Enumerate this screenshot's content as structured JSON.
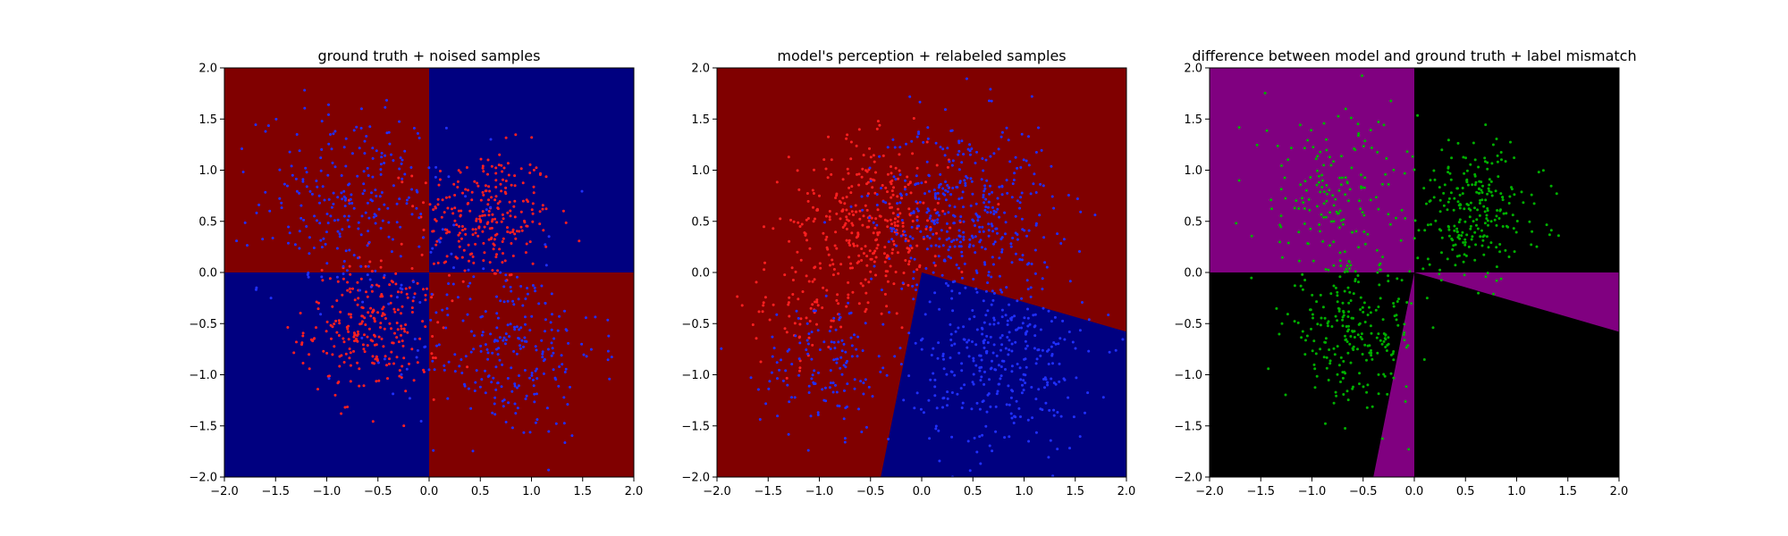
{
  "colors": {
    "red_region": "#800000",
    "blue_region": "#000080",
    "purple_region": "#800080",
    "black_region": "#000000",
    "red_point": "#ff2020",
    "blue_point": "#2030ff",
    "green_point": "#00b000"
  },
  "chart_data": [
    {
      "type": "scatter",
      "title": "ground truth + noised samples",
      "xlim": [
        -2.0,
        2.0
      ],
      "ylim": [
        -2.0,
        2.0
      ],
      "xticks": [
        "−2.0",
        "−1.5",
        "−1.0",
        "−0.5",
        "0.0",
        "0.5",
        "1.0",
        "1.5",
        "2.0"
      ],
      "yticks": [
        "−2.0",
        "−1.5",
        "−1.0",
        "−0.5",
        "0.0",
        "0.5",
        "1.0",
        "1.5",
        "2.0"
      ],
      "grid": false,
      "background": "quadrant classes: x·y<0 red, x·y>0 blue",
      "regions": [
        {
          "polygon": [
            [
              -2,
              0
            ],
            [
              0,
              0
            ],
            [
              0,
              2
            ],
            [
              -2,
              2
            ]
          ],
          "color": "red_region"
        },
        {
          "polygon": [
            [
              0,
              0
            ],
            [
              2,
              0
            ],
            [
              2,
              2
            ],
            [
              0,
              2
            ]
          ],
          "color": "blue_region"
        },
        {
          "polygon": [
            [
              -2,
              -2
            ],
            [
              0,
              -2
            ],
            [
              0,
              0
            ],
            [
              -2,
              0
            ]
          ],
          "color": "blue_region"
        },
        {
          "polygon": [
            [
              0,
              -2
            ],
            [
              2,
              -2
            ],
            [
              2,
              0
            ],
            [
              0,
              0
            ]
          ],
          "color": "red_region"
        }
      ],
      "point_series": [
        {
          "color": "red_point",
          "cluster": "top-right",
          "center": [
            0.55,
            0.55
          ],
          "spread": 0.55,
          "count": 260
        },
        {
          "color": "red_point",
          "cluster": "bottom-left",
          "center": [
            -0.55,
            -0.55
          ],
          "spread": 0.55,
          "count": 260
        },
        {
          "color": "blue_point",
          "cluster": "top-left",
          "center": [
            -0.75,
            0.7
          ],
          "spread": 0.75,
          "count": 260
        },
        {
          "color": "blue_point",
          "cluster": "bottom-right",
          "center": [
            0.75,
            -0.75
          ],
          "spread": 0.75,
          "count": 260
        }
      ]
    },
    {
      "type": "scatter",
      "title": "model's perception + relabeled samples",
      "xlim": [
        -2.0,
        2.0
      ],
      "ylim": [
        -2.0,
        2.0
      ],
      "xticks": [
        "−2.0",
        "−1.5",
        "−1.0",
        "−0.5",
        "0.0",
        "0.5",
        "1.0",
        "1.5",
        "2.0"
      ],
      "yticks": [
        "−2.0",
        "−1.5",
        "−1.0",
        "−0.5",
        "0.0",
        "0.5",
        "1.0",
        "1.5",
        "2.0"
      ],
      "grid": false,
      "regions": [
        {
          "polygon": [
            [
              -2,
              -2
            ],
            [
              2,
              -2
            ],
            [
              2,
              2
            ],
            [
              -2,
              2
            ]
          ],
          "color": "red_region"
        },
        {
          "polygon": [
            [
              0,
              0
            ],
            [
              2,
              -0.58
            ],
            [
              2,
              -2
            ],
            [
              -0.4,
              -2
            ]
          ],
          "color": "blue_region"
        }
      ],
      "point_series": [
        {
          "color": "red_point",
          "cluster": "top-left",
          "center": [
            -0.5,
            0.5
          ],
          "spread": 0.65,
          "count": 340
        },
        {
          "color": "red_point",
          "cluster": "left",
          "center": [
            -1.2,
            -0.4
          ],
          "spread": 0.45,
          "count": 60
        },
        {
          "color": "blue_point",
          "cluster": "upper",
          "center": [
            0.4,
            0.6
          ],
          "spread": 0.75,
          "count": 420
        },
        {
          "color": "blue_point",
          "cluster": "bottom-right",
          "center": [
            0.8,
            -0.9
          ],
          "spread": 0.7,
          "count": 320
        },
        {
          "color": "blue_point",
          "cluster": "bottom-left",
          "center": [
            -0.9,
            -0.9
          ],
          "spread": 0.55,
          "count": 140
        }
      ]
    },
    {
      "type": "scatter",
      "title": "difference between model and ground truth + label mismatch",
      "xlim": [
        -2.0,
        2.0
      ],
      "ylim": [
        -2.0,
        2.0
      ],
      "xticks": [
        "−2.0",
        "−1.5",
        "−1.0",
        "−0.5",
        "0.0",
        "0.5",
        "1.0",
        "1.5",
        "2.0"
      ],
      "yticks": [
        "−2.0",
        "−1.5",
        "−1.0",
        "−0.5",
        "0.0",
        "0.5",
        "1.0",
        "1.5",
        "2.0"
      ],
      "grid": false,
      "regions": [
        {
          "polygon": [
            [
              -2,
              -2
            ],
            [
              2,
              -2
            ],
            [
              2,
              2
            ],
            [
              -2,
              2
            ]
          ],
          "color": "black_region"
        },
        {
          "polygon": [
            [
              -2,
              0
            ],
            [
              0,
              0
            ],
            [
              0,
              2
            ],
            [
              -2,
              2
            ]
          ],
          "color": "purple_region"
        },
        {
          "polygon": [
            [
              0,
              0
            ],
            [
              2,
              0
            ],
            [
              2,
              -0.58
            ]
          ],
          "color": "purple_region"
        },
        {
          "polygon": [
            [
              0,
              0
            ],
            [
              0,
              -2
            ],
            [
              -0.4,
              -2
            ]
          ],
          "color": "purple_region"
        }
      ],
      "point_series": [
        {
          "color": "green_point",
          "cluster": "top-left",
          "center": [
            -0.8,
            0.75
          ],
          "spread": 0.7,
          "count": 170
        },
        {
          "color": "green_point",
          "cluster": "top-right",
          "center": [
            0.6,
            0.6
          ],
          "spread": 0.55,
          "count": 240
        },
        {
          "color": "green_point",
          "cluster": "bottom-left",
          "center": [
            -0.6,
            -0.6
          ],
          "spread": 0.55,
          "count": 240
        }
      ]
    }
  ]
}
